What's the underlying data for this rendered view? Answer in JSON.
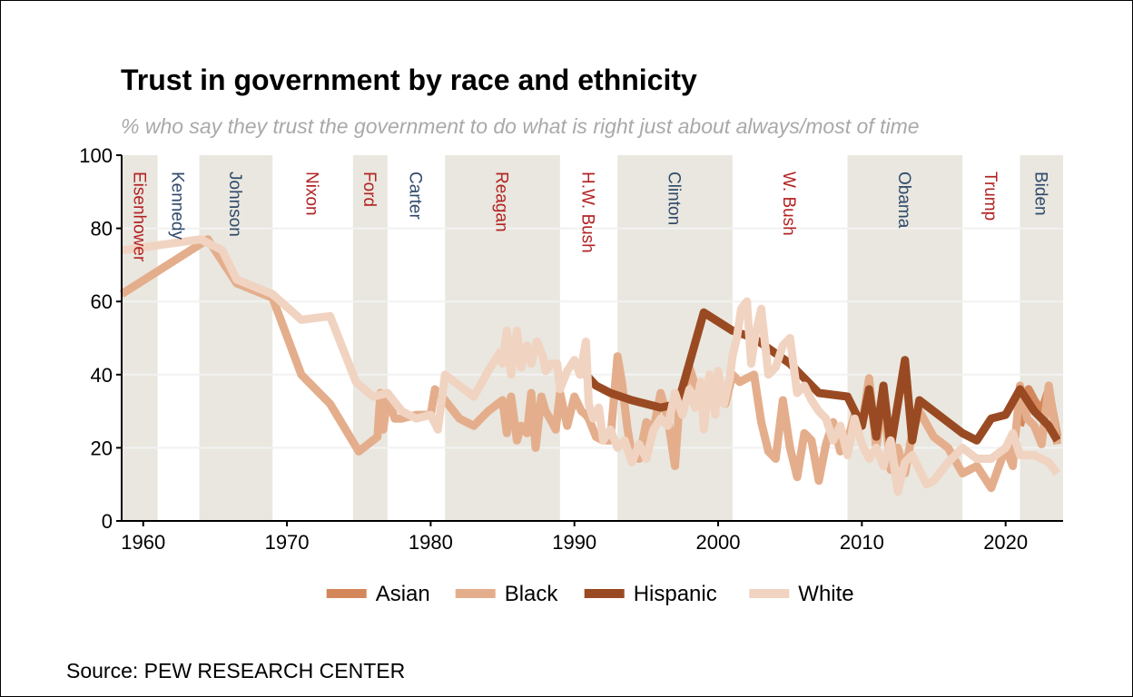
{
  "title": "Trust in government by race and ethnicity",
  "subtitle": "% who say they trust the government to do what is right just about always/most of time",
  "source": "Source: PEW RESEARCH CENTER",
  "colors": {
    "Asian": "#d4875a",
    "Black": "#e4ae8c",
    "Hispanic": "#9a4a22",
    "White": "#f1d3c1",
    "band": "#e9e7df",
    "rep_text": "#b22222",
    "dem_text": "#2f4a6b"
  },
  "chart_data": {
    "type": "line",
    "title": "Trust in government by race and ethnicity",
    "subtitle": "% who say they trust the government to do what is right just about always/most of time",
    "xlim": [
      1958.5,
      2024
    ],
    "ylim": [
      0,
      100
    ],
    "x_ticks": [
      1960,
      1970,
      1980,
      1990,
      2000,
      2010,
      2020
    ],
    "y_ticks": [
      0,
      20,
      40,
      60,
      80,
      100
    ],
    "grid": "horizontal",
    "legend_position": "bottom",
    "presidents": [
      {
        "name": "Eisenhower",
        "start": 1958.5,
        "end": 1961,
        "party": "R"
      },
      {
        "name": "Kennedy",
        "start": 1961,
        "end": 1963.9,
        "party": "D"
      },
      {
        "name": "Johnson",
        "start": 1963.9,
        "end": 1969,
        "party": "D"
      },
      {
        "name": "Nixon",
        "start": 1969,
        "end": 1974.6,
        "party": "R"
      },
      {
        "name": "Ford",
        "start": 1974.6,
        "end": 1977,
        "party": "R"
      },
      {
        "name": "Carter",
        "start": 1977,
        "end": 1981,
        "party": "D"
      },
      {
        "name": "Reagan",
        "start": 1981,
        "end": 1989,
        "party": "R"
      },
      {
        "name": "H.W. Bush",
        "start": 1989,
        "end": 1993,
        "party": "R"
      },
      {
        "name": "Clinton",
        "start": 1993,
        "end": 2001,
        "party": "D"
      },
      {
        "name": "W. Bush",
        "start": 2001,
        "end": 2009,
        "party": "R"
      },
      {
        "name": "Obama",
        "start": 2009,
        "end": 2017,
        "party": "D"
      },
      {
        "name": "Trump",
        "start": 2017,
        "end": 2021,
        "party": "R"
      },
      {
        "name": "Biden",
        "start": 2021,
        "end": 2024,
        "party": "D"
      }
    ],
    "shaded_terms": [
      "Eisenhower",
      "Johnson",
      "Ford",
      "Reagan",
      "Clinton",
      "Obama",
      "Biden"
    ],
    "series": [
      {
        "name": "Asian",
        "x": [
          2021,
          2021.6,
          2022,
          2022.5,
          2023,
          2023.6
        ],
        "y": [
          26,
          36,
          33,
          30,
          36,
          23
        ]
      },
      {
        "name": "Black",
        "x": [
          1958.5,
          1964.5,
          1966.5,
          1969,
          1971,
          1973,
          1975,
          1976.3,
          1976.5,
          1976.7,
          1977,
          1977.5,
          1978,
          1979,
          1980,
          1980.3,
          1981,
          1982,
          1983,
          1984,
          1985,
          1985.3,
          1985.6,
          1986,
          1986.3,
          1986.7,
          1987,
          1987.3,
          1987.7,
          1988,
          1988.3,
          1988.7,
          1989,
          1989.5,
          1990,
          1990.5,
          1990.8,
          1991,
          1991.5,
          1992,
          1992.5,
          1993,
          1993.3,
          1993.7,
          1994,
          1994.5,
          1995,
          1995.5,
          1996,
          1996.5,
          1997,
          1997.3,
          1997.6,
          1998,
          1998.4,
          1998.8,
          1999,
          1999.5,
          2000,
          2000.5,
          2001,
          2001.5,
          2002,
          2002.5,
          2003,
          2003.5,
          2004,
          2004.5,
          2005,
          2005.5,
          2006,
          2006.5,
          2007,
          2007.5,
          2008,
          2008.5,
          2009,
          2009.5,
          2010,
          2010.5,
          2011,
          2011.5,
          2012,
          2012.5,
          2013,
          2013.5,
          2014,
          2015,
          2016,
          2017,
          2018,
          2019,
          2020,
          2020.5,
          2021,
          2021.5,
          2022,
          2022.5,
          2023,
          2023.6
        ],
        "y": [
          62,
          77,
          65,
          61,
          40,
          32,
          19,
          23,
          35,
          25,
          34,
          28,
          28,
          29,
          29,
          36,
          33,
          28,
          26,
          30,
          33,
          24,
          34,
          22,
          26,
          24,
          35,
          20,
          34,
          30,
          28,
          25,
          35,
          26,
          34,
          30,
          29,
          28,
          23,
          22,
          22,
          45,
          38,
          25,
          18,
          17,
          27,
          25,
          35,
          28,
          15,
          32,
          35,
          42,
          37,
          36,
          30,
          33,
          35,
          32,
          40,
          38,
          39,
          40,
          27,
          19,
          17,
          33,
          20,
          12,
          24,
          22,
          11,
          21,
          27,
          19,
          22,
          29,
          26,
          39,
          20,
          35,
          14,
          20,
          13,
          24,
          30,
          23,
          20,
          13,
          15,
          9,
          20,
          15,
          37,
          28,
          26,
          21,
          37,
          21
        ]
      },
      {
        "name": "Hispanic",
        "x": [
          1990.8,
          1991.5,
          1992.5,
          1994,
          1996,
          1997.2,
          1999,
          2001,
          2002.5,
          2005,
          2007,
          2009,
          2010,
          2010.5,
          2011,
          2011.5,
          2012,
          2012.5,
          2013,
          2013.5,
          2014,
          2015,
          2016,
          2017,
          2018,
          2019,
          2020,
          2021,
          2021.5,
          2022,
          2023,
          2023.6
        ],
        "y": [
          40,
          37,
          35,
          33,
          31,
          32,
          57,
          52,
          50,
          43,
          35,
          34,
          26,
          36,
          23,
          37,
          20,
          32,
          44,
          22,
          33,
          30,
          27,
          24,
          22,
          28,
          29,
          36,
          33,
          30,
          26,
          22
        ]
      },
      {
        "name": "White",
        "x": [
          1958.5,
          1964,
          1965.5,
          1966.5,
          1969,
          1971,
          1973,
          1974.8,
          1976,
          1977,
          1978,
          1979,
          1980,
          1980.5,
          1981,
          1982,
          1983,
          1984,
          1984.8,
          1985,
          1985.3,
          1985.6,
          1986,
          1986.3,
          1986.7,
          1987,
          1987.4,
          1987.8,
          1988,
          1988.4,
          1988.8,
          1989,
          1989.5,
          1990,
          1990.4,
          1990.8,
          1991,
          1991.3,
          1991.7,
          1992,
          1992.5,
          1993,
          1993.5,
          1994,
          1994.5,
          1995,
          1995.5,
          1996,
          1996.5,
          1997,
          1997.5,
          1998,
          1998.4,
          1998.8,
          1999,
          1999.4,
          1999.8,
          2000,
          2000.4,
          2000.8,
          2001,
          2001.3,
          2001.6,
          2002,
          2002.3,
          2002.6,
          2003,
          2003.5,
          2004,
          2004.5,
          2005,
          2005.5,
          2006,
          2006.5,
          2007,
          2007.5,
          2008,
          2008.5,
          2009,
          2009.5,
          2010,
          2010.5,
          2011,
          2011.5,
          2012,
          2012.5,
          2013,
          2013.5,
          2014,
          2014.5,
          2015,
          2016,
          2017,
          2018,
          2019,
          2020,
          2020.5,
          2021,
          2022,
          2023,
          2023.6
        ],
        "y": [
          74,
          77,
          74,
          66,
          62,
          55,
          56,
          38,
          34,
          35,
          30,
          28,
          29,
          25,
          40,
          37,
          34,
          41,
          46,
          43,
          52,
          40,
          52,
          42,
          48,
          43,
          49,
          45,
          41,
          43,
          43,
          36,
          41,
          44,
          40,
          49,
          32,
          28,
          31,
          22,
          25,
          20,
          22,
          16,
          21,
          17,
          25,
          28,
          26,
          35,
          29,
          36,
          31,
          38,
          25,
          40,
          29,
          41,
          32,
          39,
          45,
          50,
          58,
          60,
          43,
          51,
          58,
          40,
          42,
          48,
          50,
          35,
          37,
          33,
          30,
          28,
          22,
          26,
          18,
          28,
          21,
          17,
          20,
          15,
          22,
          8,
          16,
          18,
          14,
          10,
          11,
          16,
          20,
          17,
          17,
          20,
          24,
          18,
          18,
          16,
          13
        ]
      }
    ]
  }
}
